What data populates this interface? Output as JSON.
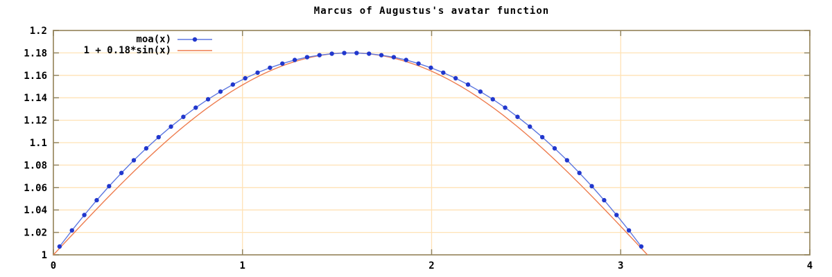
{
  "title": "Marcus of Augustus's avatar function",
  "colors": {
    "background": "#ffffff",
    "grid": "#ffe2b5",
    "border": "#a89a78",
    "tick": "#94855f",
    "text": "#000000",
    "moa_line": "#5d77e0",
    "moa_point": "#2137cd",
    "sin_line": "#ee7c4e"
  },
  "chart_data": {
    "type": "line",
    "title": "Marcus of Augustus's avatar function",
    "xlabel": "",
    "ylabel": "",
    "xlim": [
      0,
      4
    ],
    "ylim": [
      1,
      1.2
    ],
    "x_ticks": [
      {
        "value": 0,
        "label": "0"
      },
      {
        "value": 1,
        "label": "1"
      },
      {
        "value": 2,
        "label": "2"
      },
      {
        "value": 3,
        "label": "3"
      },
      {
        "value": 4,
        "label": "4"
      }
    ],
    "y_ticks": [
      {
        "value": 1.0,
        "label": "1"
      },
      {
        "value": 1.02,
        "label": "1.02"
      },
      {
        "value": 1.04,
        "label": "1.04"
      },
      {
        "value": 1.06,
        "label": "1.06"
      },
      {
        "value": 1.08,
        "label": "1.08"
      },
      {
        "value": 1.1,
        "label": "1.1"
      },
      {
        "value": 1.12,
        "label": "1.12"
      },
      {
        "value": 1.14,
        "label": "1.14"
      },
      {
        "value": 1.16,
        "label": "1.16"
      },
      {
        "value": 1.18,
        "label": "1.18"
      },
      {
        "value": 1.2,
        "label": "1.2"
      }
    ],
    "grid": true,
    "legend_position": "inside-top-left",
    "series": [
      {
        "name": "moa(x)",
        "style": "linespoints",
        "color_key": "moa_line",
        "point_color_key": "moa_point",
        "x": [
          0.0327,
          0.0982,
          0.1636,
          0.2291,
          0.2945,
          0.36,
          0.4254,
          0.4909,
          0.5563,
          0.6218,
          0.6872,
          0.7527,
          0.8181,
          0.8836,
          0.949,
          1.0145,
          1.0799,
          1.1454,
          1.2108,
          1.2763,
          1.3417,
          1.4072,
          1.4726,
          1.5381,
          1.6035,
          1.669,
          1.7344,
          1.7999,
          1.8653,
          1.9308,
          1.9962,
          2.0617,
          2.1271,
          2.1926,
          2.258,
          2.3235,
          2.3889,
          2.4544,
          2.5198,
          2.5853,
          2.6507,
          2.7162,
          2.7816,
          2.8471,
          2.9125,
          2.978,
          3.0434,
          3.1089
        ],
        "y": [
          1.0074,
          1.0218,
          1.0355,
          1.0487,
          1.0612,
          1.073,
          1.0843,
          1.0949,
          1.1049,
          1.1143,
          1.123,
          1.1312,
          1.1387,
          1.1455,
          1.1518,
          1.1574,
          1.1624,
          1.1668,
          1.1705,
          1.1737,
          1.1762,
          1.178,
          1.1793,
          1.1799,
          1.1799,
          1.1793,
          1.178,
          1.1762,
          1.1737,
          1.1705,
          1.1668,
          1.1624,
          1.1574,
          1.1518,
          1.1455,
          1.1387,
          1.1312,
          1.123,
          1.1143,
          1.1049,
          1.0949,
          1.0843,
          1.073,
          1.0612,
          1.0487,
          1.0355,
          1.0218,
          1.0074
        ]
      },
      {
        "name": "1 + 0.18*sin(x)",
        "style": "line",
        "color_key": "sin_line",
        "formula": "1 + 0.18*sin(x)",
        "offset": 1,
        "amplitude": 0.18,
        "x_range": [
          0,
          3.14159
        ],
        "samples": 140
      }
    ]
  }
}
